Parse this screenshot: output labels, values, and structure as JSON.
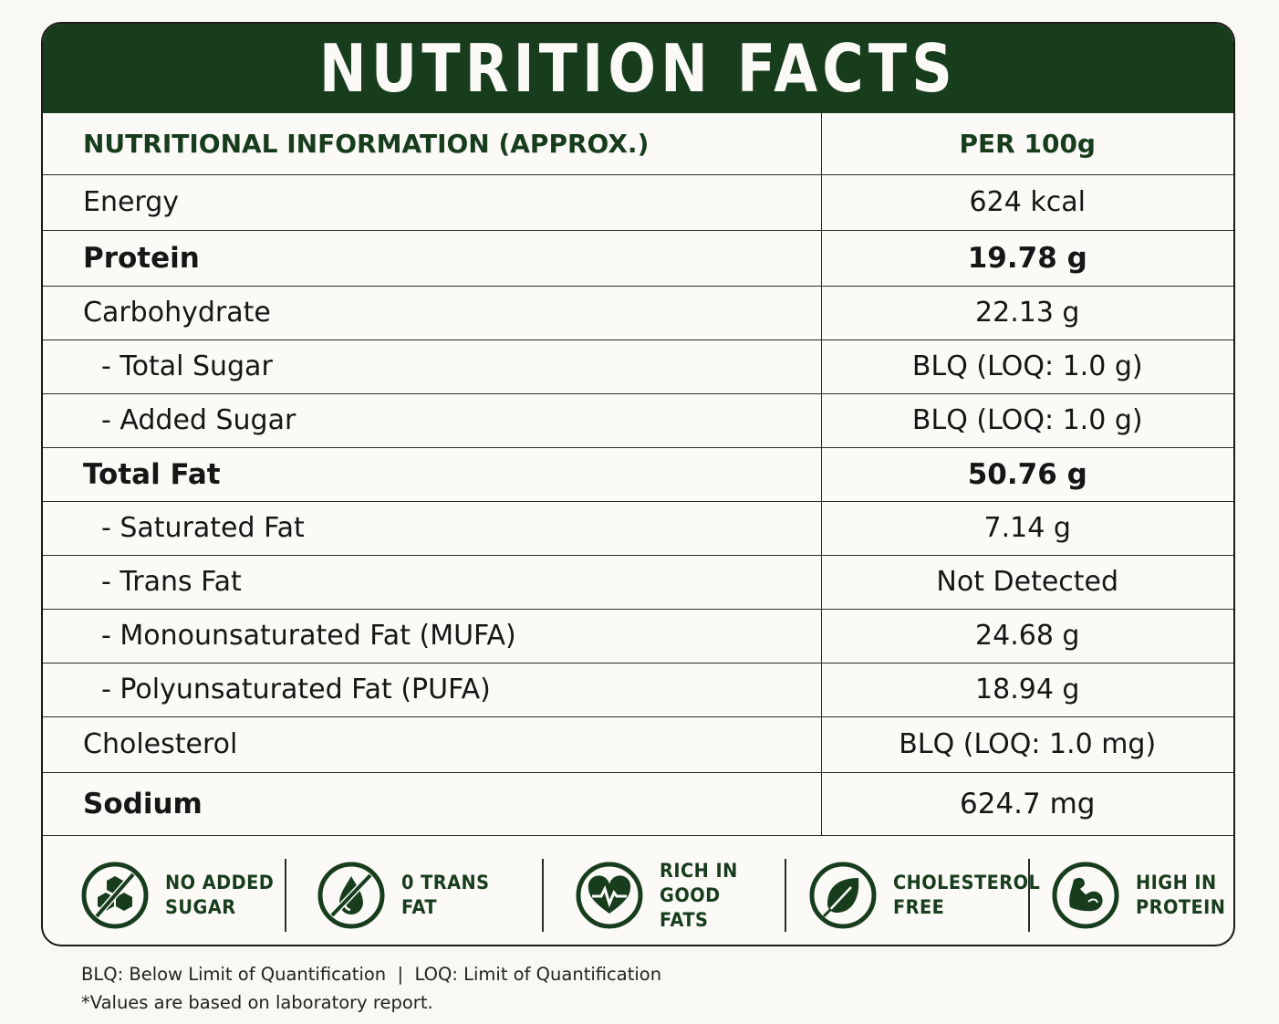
{
  "title": "NUTRITION FACTS",
  "table": {
    "header": {
      "name": "NUTRITIONAL INFORMATION (APPROX.)",
      "value": "PER 100g"
    },
    "rows": [
      {
        "name": "Energy",
        "value": "624 kcal"
      },
      {
        "name": "Protein",
        "value": "19.78 g"
      },
      {
        "name": "Carbohydrate",
        "value": "22.13 g"
      },
      {
        "name": "- Total Sugar",
        "value": "BLQ (LOQ: 1.0 g)"
      },
      {
        "name": "- Added Sugar",
        "value": "BLQ (LOQ: 1.0 g)"
      },
      {
        "name": "Total Fat",
        "value": "50.76 g"
      },
      {
        "name": "- Saturated Fat",
        "value": "7.14 g"
      },
      {
        "name": "- Trans Fat",
        "value": "Not Detected"
      },
      {
        "name": "- Monounsaturated Fat (MUFA)",
        "value": "24.68 g"
      },
      {
        "name": "- Polyunsaturated Fat (PUFA)",
        "value": "18.94 g"
      },
      {
        "name": "Cholesterol",
        "value": "BLQ (LOQ: 1.0 mg)"
      },
      {
        "name": "Sodium",
        "value": "624.7 mg"
      }
    ]
  },
  "badges": [
    {
      "icon": "no-sugar-icon",
      "line1": "NO ADDED",
      "line2": "SUGAR"
    },
    {
      "icon": "no-trans-fat-icon",
      "line1": "0 TRANS",
      "line2": "FAT"
    },
    {
      "icon": "heart-icon",
      "line1": "RICH IN",
      "line2": "GOOD FATS"
    },
    {
      "icon": "leaf-icon",
      "line1": "CHOLESTEROL",
      "line2": "FREE"
    },
    {
      "icon": "muscle-icon",
      "line1": "HIGH IN",
      "line2": "PROTEIN"
    }
  ],
  "footnotes": {
    "line1": "BLQ: Below Limit of Quantification  |  LOQ: Limit of Quantification",
    "line2": "*Values are based on laboratory report."
  },
  "colors": {
    "brand": "#173d1d",
    "background": "#f9f8f3",
    "text": "#161616"
  }
}
